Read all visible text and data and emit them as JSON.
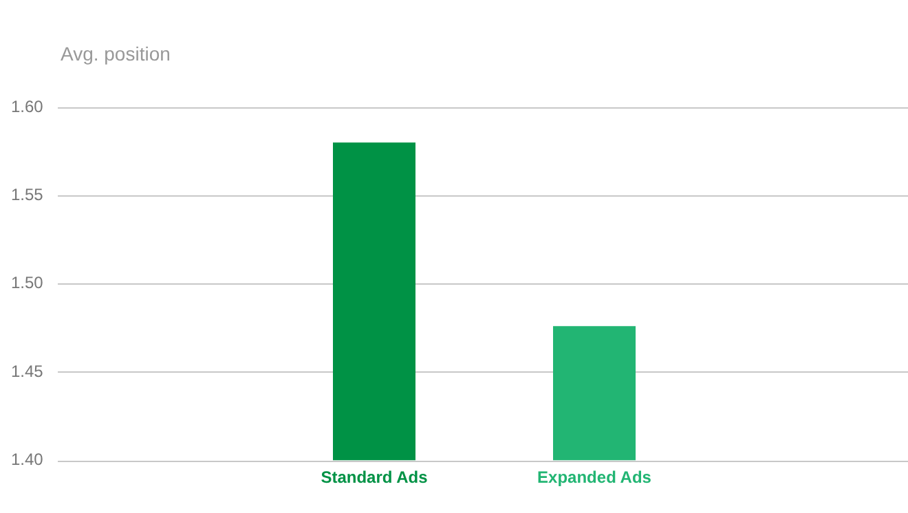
{
  "chart_data": {
    "type": "bar",
    "annotations": [
      "Avg. position"
    ],
    "categories": [
      "Standard Ads",
      "Expanded Ads"
    ],
    "values": [
      1.58,
      1.476
    ],
    "colors": [
      "#009245",
      "#22b573"
    ],
    "ylim": [
      1.4,
      1.6
    ],
    "yticks": [
      {
        "value": 1.4,
        "label": "1.40"
      },
      {
        "value": 1.45,
        "label": "1.45"
      },
      {
        "value": 1.5,
        "label": "1.50"
      },
      {
        "value": 1.55,
        "label": "1.55"
      },
      {
        "value": 1.6,
        "label": "1.60"
      }
    ],
    "grid": "y",
    "legend": false
  }
}
